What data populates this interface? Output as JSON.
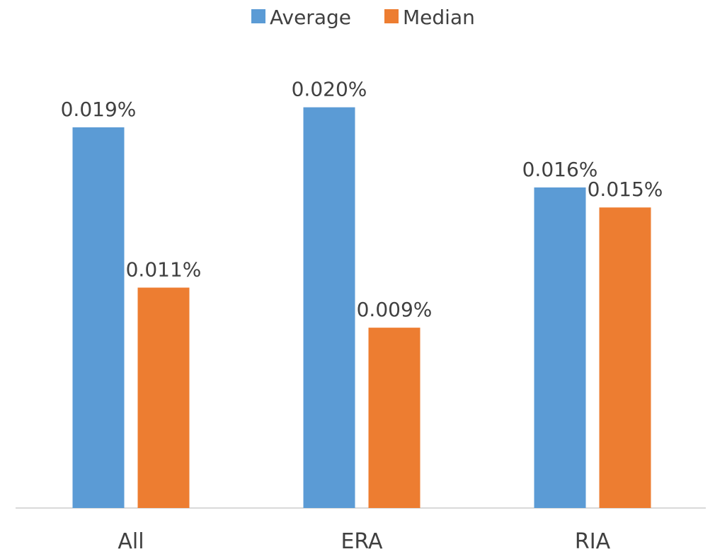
{
  "chart_data": {
    "type": "bar",
    "title": "",
    "xlabel": "",
    "ylabel": "",
    "ylim": [
      0,
      0.022
    ],
    "grid": false,
    "legend_position": "top",
    "categories": [
      "All",
      "ERA",
      "RIA"
    ],
    "series": [
      {
        "name": "Average",
        "color": "#5B9BD5",
        "values": [
          0.019,
          0.02,
          0.016
        ],
        "labels": [
          "0.019%",
          "0.020%",
          "0.016%"
        ]
      },
      {
        "name": "Median",
        "color": "#ED7D31",
        "values": [
          0.011,
          0.009,
          0.015
        ],
        "labels": [
          "0.011%",
          "0.009%",
          "0.015%"
        ]
      }
    ]
  }
}
